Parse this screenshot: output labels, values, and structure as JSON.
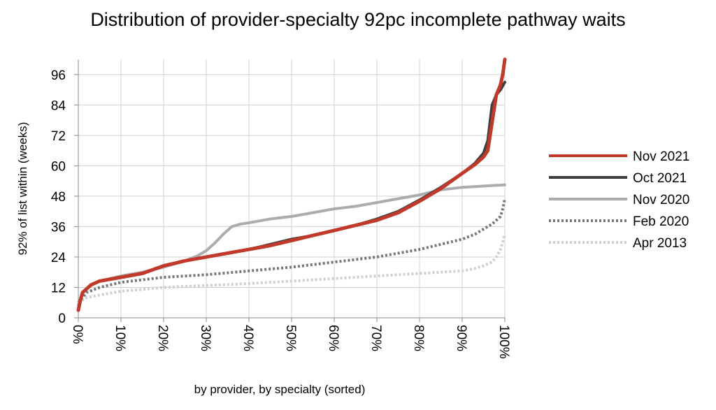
{
  "chart_data": {
    "type": "line",
    "title": "Distribution of provider-specialty 92pc incomplete pathway waits",
    "xlabel": "by provider, by specialty (sorted)",
    "ylabel": "92% of list within (weeks)",
    "ylim": [
      0,
      102
    ],
    "xlim": [
      0,
      100
    ],
    "y_ticks": [
      0,
      12,
      24,
      36,
      48,
      60,
      72,
      84,
      96
    ],
    "x_ticks": [
      "0%",
      "10%",
      "20%",
      "30%",
      "40%",
      "50%",
      "60%",
      "70%",
      "80%",
      "90%",
      "100%"
    ],
    "grid": true,
    "legend_position": "right",
    "series": [
      {
        "name": "Apr 2013",
        "color": "#cfcfcf",
        "style": "dotted",
        "x": [
          0,
          2,
          5,
          10,
          20,
          30,
          40,
          50,
          60,
          70,
          80,
          85,
          90,
          93,
          95,
          97,
          98,
          99,
          99.5,
          100
        ],
        "y": [
          6,
          8,
          9,
          10.5,
          12,
          12.8,
          13.5,
          14.5,
          15.5,
          16.5,
          17.5,
          18,
          18.5,
          19.5,
          20.5,
          22,
          24,
          27,
          30,
          33
        ]
      },
      {
        "name": "Feb 2020",
        "color": "#767676",
        "style": "dotted",
        "x": [
          0,
          2,
          5,
          10,
          20,
          30,
          40,
          50,
          60,
          70,
          80,
          85,
          90,
          93,
          95,
          97,
          98,
          99,
          99.5,
          100
        ],
        "y": [
          6,
          10,
          12,
          14,
          16,
          17,
          18.5,
          20,
          22,
          24,
          27,
          29,
          31,
          33,
          35,
          37,
          38.5,
          40,
          43,
          47
        ]
      },
      {
        "name": "Nov 2020",
        "color": "#acacac",
        "style": "solid",
        "x": [
          0,
          1,
          3,
          5,
          10,
          15,
          20,
          25,
          28,
          30,
          32,
          34,
          36,
          38,
          40,
          45,
          50,
          55,
          60,
          65,
          70,
          75,
          80,
          85,
          90,
          95,
          100
        ],
        "y": [
          5,
          10,
          13,
          14.5,
          16.5,
          18,
          20,
          22.5,
          24.5,
          26.5,
          29.5,
          33,
          36,
          37,
          37.5,
          39,
          40,
          41.5,
          43,
          44,
          45.5,
          47,
          48.5,
          50.5,
          51.5,
          52,
          52.5
        ]
      },
      {
        "name": "Oct 2021",
        "color": "#3e3e3e",
        "style": "solid",
        "x": [
          0,
          0.5,
          1,
          3,
          5,
          10,
          15,
          20,
          25,
          30,
          35,
          40,
          45,
          50,
          55,
          60,
          65,
          70,
          75,
          80,
          85,
          90,
          93,
          95,
          96,
          97,
          98,
          99,
          100
        ],
        "y": [
          3,
          7,
          10,
          13,
          14.5,
          16,
          17.5,
          20.5,
          22.5,
          24,
          25.5,
          27,
          29,
          31,
          32.5,
          34.5,
          36.5,
          39,
          42,
          46.5,
          51.5,
          57,
          61,
          65,
          70,
          84,
          88,
          90,
          93
        ]
      },
      {
        "name": "Nov 2021",
        "color": "#c0392b",
        "style": "solid",
        "x": [
          0,
          0.5,
          1,
          3,
          5,
          10,
          15,
          20,
          25,
          30,
          35,
          40,
          45,
          50,
          55,
          60,
          65,
          70,
          75,
          80,
          85,
          90,
          93,
          95,
          96,
          97,
          98,
          99,
          99.5,
          100
        ],
        "y": [
          3,
          7,
          10,
          13,
          14.5,
          16,
          17.5,
          20.5,
          22.5,
          24,
          25.5,
          27,
          28.5,
          30.5,
          32.5,
          34.5,
          36.5,
          38.5,
          41.5,
          46,
          51,
          57,
          60.5,
          63.5,
          66,
          77,
          88,
          92,
          96,
          102
        ]
      }
    ],
    "legend_order": [
      "Nov 2021",
      "Oct 2021",
      "Nov 2020",
      "Feb 2020",
      "Apr 2013"
    ]
  }
}
